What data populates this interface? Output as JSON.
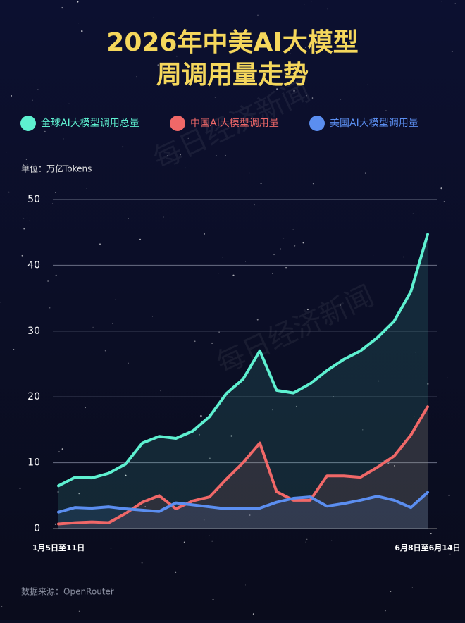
{
  "chart_data": {
    "type": "line",
    "title": [
      "2026年中美AI大模型",
      "周调用量走势"
    ],
    "unit_label": "单位：万亿Tokens",
    "source": "数据来源：OpenRouter",
    "watermark": "每日经济新闻",
    "categories": [
      "1月5日至11日",
      null,
      null,
      null,
      null,
      null,
      null,
      null,
      null,
      null,
      null,
      null,
      null,
      null,
      null,
      null,
      null,
      null,
      null,
      null,
      null,
      null,
      "6月8日至6月14日"
    ],
    "series": [
      {
        "name": "全球AI大模型调用总量",
        "color": "#5ef0d0",
        "values": [
          6.5,
          7.8,
          7.7,
          8.4,
          9.8,
          13,
          14,
          13.7,
          14.8,
          17,
          20.5,
          22.7,
          27,
          21,
          20.6,
          22,
          24,
          25.7,
          27,
          29,
          31.5,
          36,
          44.7
        ]
      },
      {
        "name": "中国AI大模型调用量",
        "color": "#f06868",
        "values": [
          0.7,
          0.9,
          1,
          0.9,
          2.3,
          4,
          5,
          3,
          4.2,
          4.8,
          7.5,
          10,
          13,
          5.6,
          4.3,
          4.3,
          8,
          8,
          7.8,
          9.3,
          11,
          14.2,
          18.5
        ]
      },
      {
        "name": "美国AI大模型调用量",
        "color": "#5b8ef0",
        "values": [
          2.5,
          3.2,
          3.1,
          3.3,
          3,
          2.8,
          2.6,
          3.9,
          3.6,
          3.3,
          3,
          3,
          3.1,
          4,
          4.6,
          4.8,
          3.4,
          3.8,
          4.3,
          4.9,
          4.3,
          3.2,
          5.5
        ]
      }
    ],
    "ylim": [
      0,
      50
    ],
    "yticks": [
      0,
      10,
      20,
      30,
      40,
      50
    ],
    "grid": true
  }
}
